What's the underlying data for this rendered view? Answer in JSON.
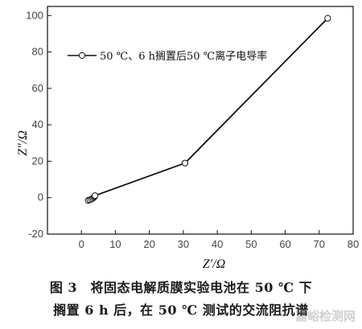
{
  "chart_data": {
    "type": "line",
    "xlabel": "Z′/Ω",
    "ylabel": "Z″/Ω",
    "xlim": [
      -10,
      80
    ],
    "ylim": [
      -20,
      105
    ],
    "xticks": [
      0,
      10,
      20,
      30,
      40,
      50,
      60,
      70,
      80
    ],
    "yticks": [
      -20,
      0,
      20,
      40,
      60,
      80,
      100
    ],
    "grid": false,
    "legend_position": "top-left",
    "series": [
      {
        "name": "50 ℃、6 h搁置后50 ℃离子电导率",
        "color": "#111111",
        "marker": "open-circle",
        "points": [
          {
            "x": 2.0,
            "y": -1.5
          },
          {
            "x": 2.5,
            "y": -1.2
          },
          {
            "x": 3.0,
            "y": -0.8
          },
          {
            "x": 3.4,
            "y": -0.3
          },
          {
            "x": 3.7,
            "y": 0.2
          },
          {
            "x": 3.9,
            "y": 0.7
          },
          {
            "x": 4.0,
            "y": 1.1
          },
          {
            "x": 30.5,
            "y": 19.0
          },
          {
            "x": 72.5,
            "y": 98.5
          }
        ]
      }
    ]
  },
  "caption": {
    "line1": "图 3　将固态电解质膜实验电池在 50 ℃ 下",
    "line2": "搁置 6 h 后，在 50 ℃ 测试的交流阻抗谱"
  },
  "watermark": "嘉峪检测网"
}
